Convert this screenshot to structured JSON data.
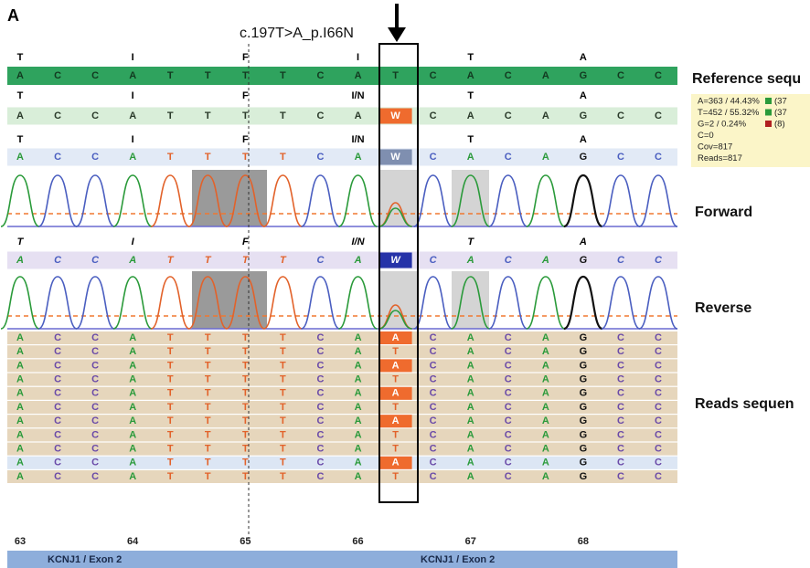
{
  "panel_label": "A",
  "mutation_label": "c.197T>A_p.I66N",
  "reference": {
    "label": "Reference sequ",
    "amino_acids": [
      "T",
      "I",
      "F",
      "I",
      "T",
      "A"
    ],
    "bases": [
      "A",
      "C",
      "C",
      "A",
      "T",
      "T",
      "T",
      "T",
      "C",
      "A",
      "T",
      "C",
      "A",
      "C",
      "A",
      "G",
      "C",
      "C"
    ]
  },
  "sample": {
    "amino_acids": [
      "T",
      "I",
      "F",
      "I/N",
      "T",
      "A"
    ],
    "bases": [
      "A",
      "C",
      "C",
      "A",
      "T",
      "T",
      "T",
      "T",
      "C",
      "A",
      "W",
      "C",
      "A",
      "C",
      "A",
      "G",
      "C",
      "C"
    ]
  },
  "stats": [
    {
      "text": "A=363 / 44.43%",
      "suffix": "(37"
    },
    {
      "text": "T=452 / 55.32%",
      "suffix": "(37"
    },
    {
      "text": "G=2 / 0.24%",
      "suffix": "(8)"
    },
    {
      "text": "C=0"
    },
    {
      "text": "Cov=817"
    },
    {
      "text": "Reads=817"
    }
  ],
  "forward": {
    "label": "Forward",
    "amino_acids": [
      "T",
      "I",
      "F",
      "I/N",
      "T",
      "A"
    ],
    "bases": [
      "A",
      "C",
      "C",
      "A",
      "T",
      "T",
      "T",
      "T",
      "C",
      "A",
      "W",
      "C",
      "A",
      "C",
      "A",
      "G",
      "C",
      "C"
    ]
  },
  "reverse": {
    "label": "Reverse",
    "amino_acids": [
      "T",
      "I",
      "F",
      "I/N",
      "T",
      "A"
    ],
    "bases": [
      "A",
      "C",
      "C",
      "A",
      "T",
      "T",
      "T",
      "T",
      "C",
      "A",
      "W",
      "C",
      "A",
      "C",
      "A",
      "G",
      "C",
      "C"
    ]
  },
  "reads": {
    "label": "Reads sequen",
    "rows": [
      [
        "A",
        "C",
        "C",
        "A",
        "T",
        "T",
        "T",
        "T",
        "C",
        "A",
        "A",
        "C",
        "A",
        "C",
        "A",
        "G",
        "C",
        "C"
      ],
      [
        "A",
        "C",
        "C",
        "A",
        "T",
        "T",
        "T",
        "T",
        "C",
        "A",
        "T",
        "C",
        "A",
        "C",
        "A",
        "G",
        "C",
        "C"
      ],
      [
        "A",
        "C",
        "C",
        "A",
        "T",
        "T",
        "T",
        "T",
        "C",
        "A",
        "A",
        "C",
        "A",
        "C",
        "A",
        "G",
        "C",
        "C"
      ],
      [
        "A",
        "C",
        "C",
        "A",
        "T",
        "T",
        "T",
        "T",
        "C",
        "A",
        "T",
        "C",
        "A",
        "C",
        "A",
        "G",
        "C",
        "C"
      ],
      [
        "A",
        "C",
        "C",
        "A",
        "T",
        "T",
        "T",
        "T",
        "C",
        "A",
        "A",
        "C",
        "A",
        "C",
        "A",
        "G",
        "C",
        "C"
      ],
      [
        "A",
        "C",
        "C",
        "A",
        "T",
        "T",
        "T",
        "T",
        "C",
        "A",
        "T",
        "C",
        "A",
        "C",
        "A",
        "G",
        "C",
        "C"
      ],
      [
        "A",
        "C",
        "C",
        "A",
        "T",
        "T",
        "T",
        "T",
        "C",
        "A",
        "A",
        "C",
        "A",
        "C",
        "A",
        "G",
        "C",
        "C"
      ],
      [
        "A",
        "C",
        "C",
        "A",
        "T",
        "T",
        "T",
        "T",
        "C",
        "A",
        "T",
        "C",
        "A",
        "C",
        "A",
        "G",
        "C",
        "C"
      ],
      [
        "A",
        "C",
        "C",
        "A",
        "T",
        "T",
        "T",
        "T",
        "C",
        "A",
        "T",
        "C",
        "A",
        "C",
        "A",
        "G",
        "C",
        "C"
      ],
      [
        "A",
        "C",
        "C",
        "A",
        "T",
        "T",
        "T",
        "T",
        "C",
        "A",
        "A",
        "C",
        "A",
        "C",
        "A",
        "G",
        "C",
        "C"
      ],
      [
        "A",
        "C",
        "C",
        "A",
        "T",
        "T",
        "T",
        "T",
        "C",
        "A",
        "T",
        "C",
        "A",
        "C",
        "A",
        "G",
        "C",
        "C"
      ]
    ]
  },
  "positions": [
    63,
    64,
    65,
    66,
    67,
    68
  ],
  "exon_labels": [
    "KCNJ1 / Exon 2",
    "KCNJ1 / Exon 2"
  ]
}
